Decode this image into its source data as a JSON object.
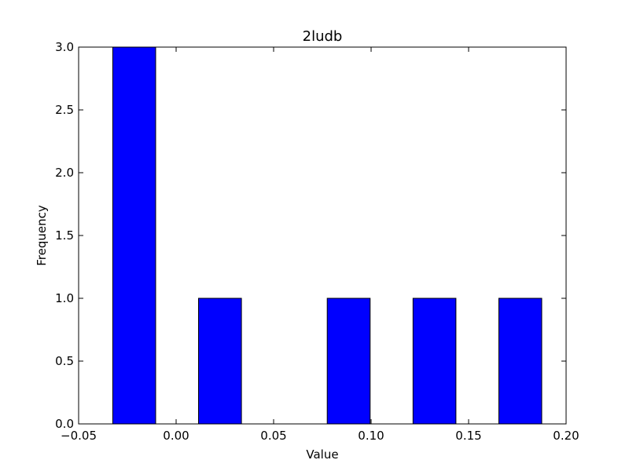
{
  "chart_data": {
    "type": "bar",
    "title": "2ludb",
    "xlabel": "Value",
    "ylabel": "Frequency",
    "xlim": [
      -0.05,
      0.2
    ],
    "ylim": [
      0,
      3.0
    ],
    "xticks": [
      -0.05,
      0.0,
      0.05,
      0.1,
      0.15,
      0.2
    ],
    "xtick_labels": [
      "−0.05",
      "0.00",
      "0.05",
      "0.10",
      "0.15",
      "0.20"
    ],
    "yticks": [
      0,
      0.5,
      1.0,
      1.5,
      2.0,
      2.5,
      3.0
    ],
    "ytick_labels": [
      "0.0",
      "0.5",
      "1.0",
      "1.5",
      "2.0",
      "2.5",
      "3.0"
    ],
    "bars": [
      {
        "x_start": -0.0325,
        "x_end": -0.0105,
        "value": 3
      },
      {
        "x_start": 0.0115,
        "x_end": 0.0335,
        "value": 1
      },
      {
        "x_start": 0.0775,
        "x_end": 0.0995,
        "value": 1
      },
      {
        "x_start": 0.1215,
        "x_end": 0.1435,
        "value": 1
      },
      {
        "x_start": 0.1655,
        "x_end": 0.1875,
        "value": 1
      }
    ],
    "bar_color": "#0000ff",
    "edge_color": "#000000",
    "grid": false
  }
}
